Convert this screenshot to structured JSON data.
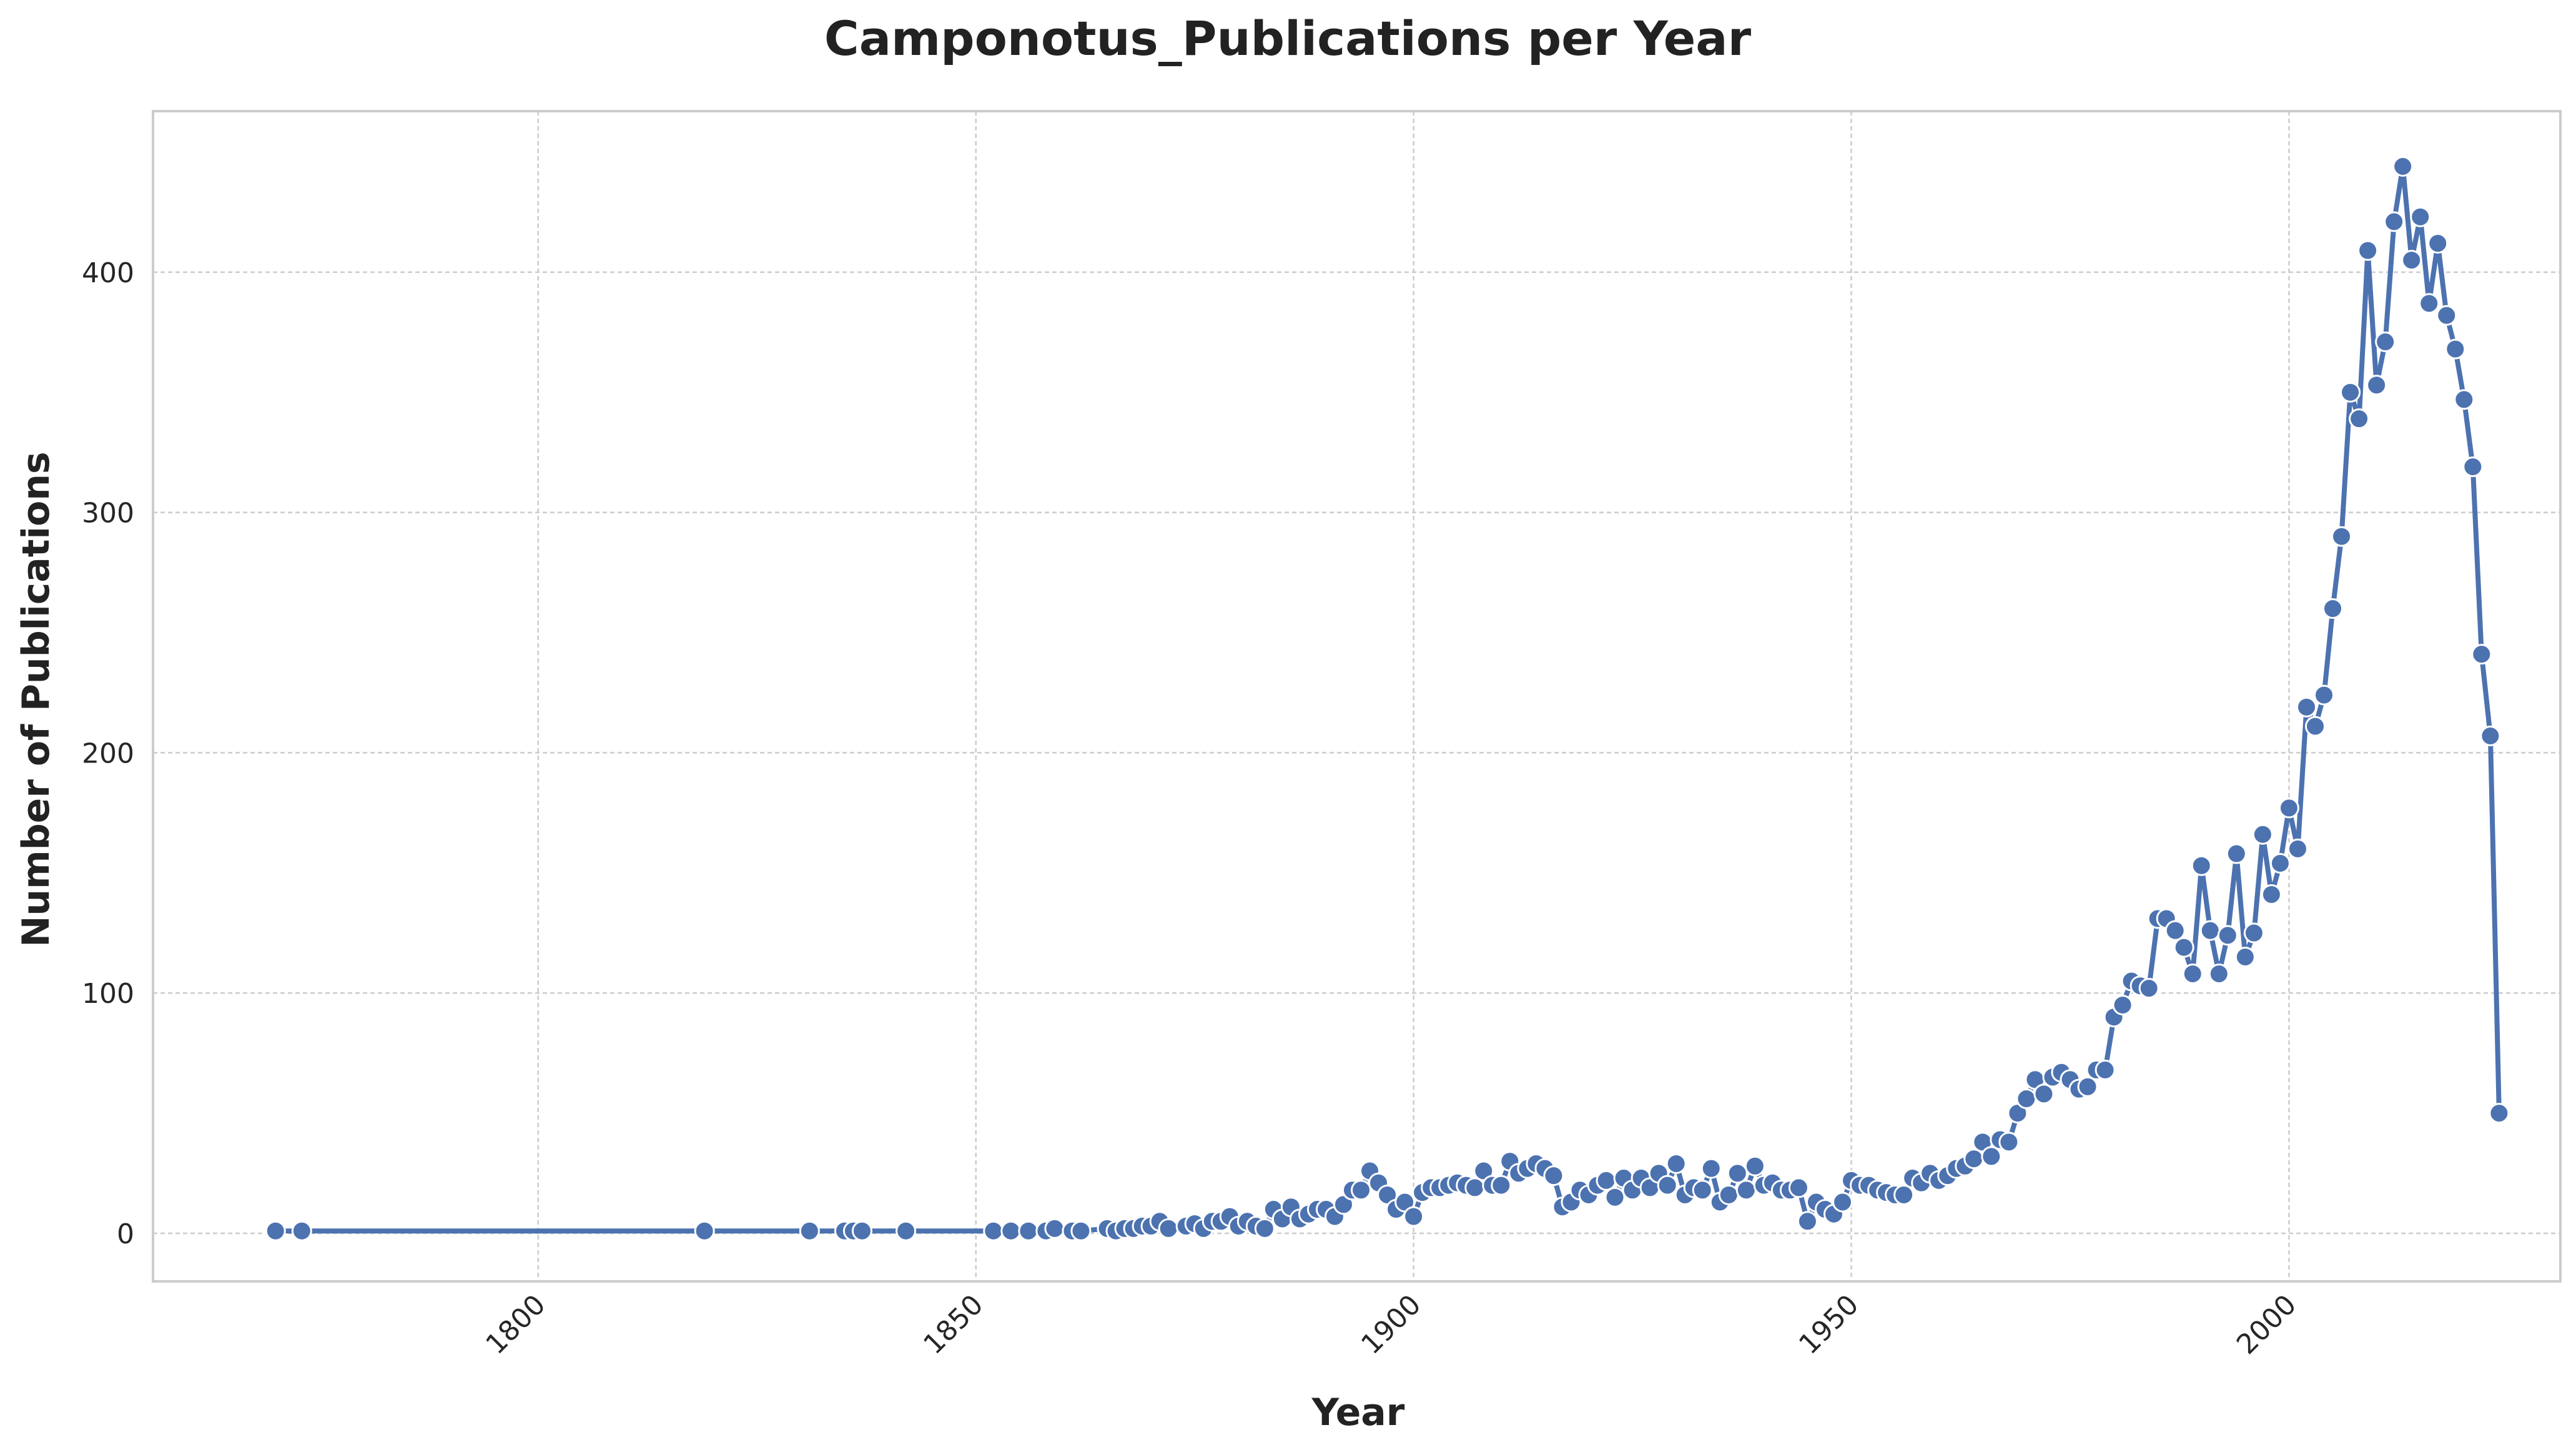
{
  "chart_data": {
    "type": "line",
    "title": "Camponotus_Publications per Year",
    "xlabel": "Year",
    "ylabel": "Number of Publications",
    "xlim": [
      1756,
      2031
    ],
    "ylim": [
      -20,
      467
    ],
    "x_ticks": [
      1800,
      1850,
      1900,
      1950,
      2000
    ],
    "y_ticks": [
      0,
      100,
      200,
      300,
      400
    ],
    "grid": true,
    "colors": {
      "line": "#4c72b0",
      "marker_edge": "#ffffff",
      "grid": "#cccccc",
      "frame": "#cccccc"
    },
    "series": [
      {
        "x": [
          1770,
          1773,
          1819,
          1831,
          1835,
          1836,
          1837,
          1842,
          1852,
          1854,
          1856,
          1858,
          1859,
          1861,
          1862,
          1865,
          1866,
          1867,
          1868,
          1869,
          1870,
          1871,
          1872,
          1874,
          1875,
          1876,
          1877,
          1878,
          1879,
          1880,
          1881,
          1882,
          1883,
          1884,
          1885,
          1886,
          1887,
          1888,
          1889,
          1890,
          1891,
          1892,
          1893,
          1894,
          1895,
          1896,
          1897,
          1898,
          1899,
          1900,
          1901,
          1902,
          1903,
          1904,
          1905,
          1906,
          1907,
          1908,
          1909,
          1910,
          1911,
          1912,
          1913,
          1914,
          1915,
          1916,
          1917,
          1918,
          1919,
          1920,
          1921,
          1922,
          1923,
          1924,
          1925,
          1926,
          1927,
          1928,
          1929,
          1930,
          1931,
          1932,
          1933,
          1934,
          1935,
          1936,
          1937,
          1938,
          1939,
          1940,
          1941,
          1942,
          1943,
          1944,
          1945,
          1946,
          1947,
          1948,
          1949,
          1950,
          1951,
          1952,
          1953,
          1954,
          1955,
          1956,
          1957,
          1958,
          1959,
          1960,
          1961,
          1962,
          1963,
          1964,
          1965,
          1966,
          1967,
          1968,
          1969,
          1970,
          1971,
          1972,
          1973,
          1974,
          1975,
          1976,
          1977,
          1978,
          1979,
          1980,
          1981,
          1982,
          1983,
          1984,
          1985,
          1986,
          1987,
          1988,
          1989,
          1990,
          1991,
          1992,
          1993,
          1994,
          1995,
          1996,
          1997,
          1998,
          1999,
          2000,
          2001,
          2002,
          2003,
          2004,
          2005,
          2006,
          2007,
          2008,
          2009,
          2010,
          2011,
          2012,
          2013,
          2014,
          2015,
          2016,
          2017,
          2018,
          2019,
          2020,
          2021,
          2022,
          2023,
          2024
        ],
        "values": [
          1,
          1,
          1,
          1,
          1,
          1,
          1,
          1,
          1,
          1,
          1,
          1,
          2,
          1,
          1,
          2,
          1,
          2,
          2,
          3,
          3,
          5,
          2,
          3,
          4,
          2,
          5,
          5,
          7,
          3,
          5,
          3,
          2,
          10,
          6,
          11,
          6,
          8,
          10,
          10,
          7,
          12,
          18,
          18,
          26,
          21,
          16,
          10,
          13,
          7,
          17,
          19,
          19,
          20,
          21,
          20,
          19,
          26,
          20,
          20,
          30,
          25,
          27,
          29,
          27,
          24,
          11,
          13,
          18,
          16,
          20,
          22,
          15,
          23,
          18,
          23,
          19,
          25,
          20,
          29,
          16,
          19,
          18,
          27,
          13,
          16,
          25,
          18,
          28,
          20,
          21,
          18,
          18,
          19,
          5,
          13,
          10,
          8,
          13,
          22,
          20,
          20,
          18,
          17,
          16,
          16,
          23,
          21,
          25,
          22,
          24,
          27,
          28,
          31,
          38,
          32,
          39,
          38,
          50,
          56,
          64,
          58,
          65,
          67,
          64,
          60,
          61,
          68,
          68,
          90,
          95,
          105,
          103,
          102,
          131,
          131,
          126,
          119,
          108,
          153,
          126,
          108,
          124,
          158,
          115,
          125,
          166,
          141,
          154,
          177,
          160,
          219,
          211,
          224,
          260,
          290,
          350,
          339,
          409,
          353,
          371,
          421,
          444,
          405,
          423,
          387,
          412,
          382,
          368,
          347,
          319,
          241,
          207,
          50
        ]
      }
    ]
  }
}
